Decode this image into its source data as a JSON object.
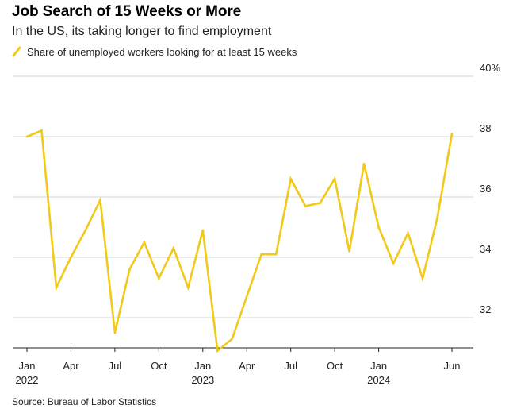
{
  "header": {
    "title": "Job Search of 15 Weeks or More",
    "subtitle": "In the US, its taking longer to find employment"
  },
  "footer": {
    "source": "Source: Bureau of Labor Statistics"
  },
  "colors": {
    "series": "#f2c918",
    "grid": "#d6d6d6",
    "axis": "#222222"
  },
  "chart_data": {
    "type": "line",
    "title": "Job Search of 15 Weeks or More",
    "subtitle": "In the US, its taking longer to find employment",
    "xlabel": "",
    "ylabel": "",
    "ylim": [
      31,
      40
    ],
    "grid": true,
    "legend_position": "top-left",
    "y_ticks": [
      {
        "value": 40,
        "label": "40%"
      },
      {
        "value": 38,
        "label": "38"
      },
      {
        "value": 36,
        "label": "36"
      },
      {
        "value": 34,
        "label": "34"
      },
      {
        "value": 32,
        "label": "32"
      }
    ],
    "x_ticks": [
      {
        "index": 0,
        "label": "Jan",
        "sublabel": "2022"
      },
      {
        "index": 3,
        "label": "Apr",
        "sublabel": ""
      },
      {
        "index": 6,
        "label": "Jul",
        "sublabel": ""
      },
      {
        "index": 9,
        "label": "Oct",
        "sublabel": ""
      },
      {
        "index": 12,
        "label": "Jan",
        "sublabel": "2023"
      },
      {
        "index": 15,
        "label": "Apr",
        "sublabel": ""
      },
      {
        "index": 18,
        "label": "Jul",
        "sublabel": ""
      },
      {
        "index": 21,
        "label": "Oct",
        "sublabel": ""
      },
      {
        "index": 24,
        "label": "Jan",
        "sublabel": "2024"
      },
      {
        "index": 29,
        "label": "Jun",
        "sublabel": ""
      }
    ],
    "x": [
      "2022-01",
      "2022-02",
      "2022-03",
      "2022-04",
      "2022-05",
      "2022-06",
      "2022-07",
      "2022-08",
      "2022-09",
      "2022-10",
      "2022-11",
      "2022-12",
      "2023-01",
      "2023-02",
      "2023-03",
      "2023-04",
      "2023-05",
      "2023-06",
      "2023-07",
      "2023-08",
      "2023-09",
      "2023-10",
      "2023-11",
      "2023-12",
      "2024-01",
      "2024-02",
      "2024-03",
      "2024-04",
      "2024-05",
      "2024-06"
    ],
    "series": [
      {
        "name": "Share of unemployed workers looking for at least 15 weeks",
        "values": [
          38.0,
          38.2,
          33.0,
          34.0,
          34.9,
          35.9,
          31.5,
          33.6,
          34.5,
          33.3,
          34.3,
          33.0,
          34.9,
          30.9,
          31.3,
          32.7,
          34.1,
          34.1,
          36.6,
          35.7,
          35.8,
          36.6,
          34.2,
          37.1,
          35.0,
          33.8,
          34.8,
          33.3,
          35.3,
          38.1
        ]
      }
    ]
  }
}
